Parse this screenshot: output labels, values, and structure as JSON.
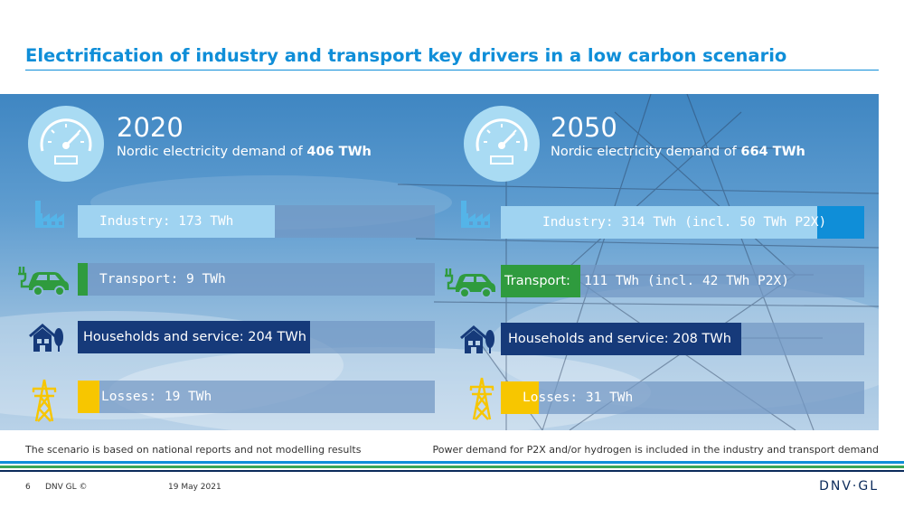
{
  "title": "Electrification of industry and transport key drivers in a low carbon scenario",
  "colors": {
    "title": "#0f8ed8",
    "industry": "#9fd3f1",
    "industry_p2x": "#0f8ed8",
    "transport": "#2f9b3e",
    "households": "#163a7a",
    "losses": "#f7c600",
    "track": "#7297c4"
  },
  "panels": [
    {
      "year": "2020",
      "demand_prefix": "Nordic electricity demand of ",
      "demand_value": "406 TWh",
      "rows": [
        {
          "category": "industry",
          "icon": "factory-icon",
          "label": "Industry: 173 TWh",
          "value": 173
        },
        {
          "category": "transport",
          "icon": "electric-car-icon",
          "label": "Transport: 9 TWh",
          "value": 9
        },
        {
          "category": "households",
          "icon": "house-icon",
          "label": "Households and service: 204 TWh",
          "value": 204
        },
        {
          "category": "losses",
          "icon": "pylon-icon",
          "label": "Losses: 19 TWh",
          "value": 19
        }
      ]
    },
    {
      "year": "2050",
      "demand_prefix": "Nordic electricity demand of ",
      "demand_value": "664 TWh",
      "rows": [
        {
          "category": "industry",
          "icon": "factory-icon",
          "label": "Industry: 314 TWh (incl. 50 TWh P2X)",
          "value": 314,
          "p2x": 50
        },
        {
          "category": "transport",
          "icon": "electric-car-icon",
          "label_head": "Transport:",
          "label_tail": "111 TWh (incl. 42 TWh P2X)",
          "value": 111,
          "p2x": 42
        },
        {
          "category": "households",
          "icon": "house-icon",
          "label": "Households and service: 208 TWh",
          "value": 208
        },
        {
          "category": "losses",
          "icon": "pylon-icon",
          "label": "Losses: 31 TWh",
          "value": 31
        }
      ]
    }
  ],
  "notes": {
    "left": "The scenario is based on national reports and not modelling results",
    "right": "Power demand for P2X and/or hydrogen is included in the industry and transport demand"
  },
  "footer": {
    "page": "6",
    "company": "DNV GL ©",
    "date": "19 May 2021",
    "logo": "DNV·GL"
  }
}
